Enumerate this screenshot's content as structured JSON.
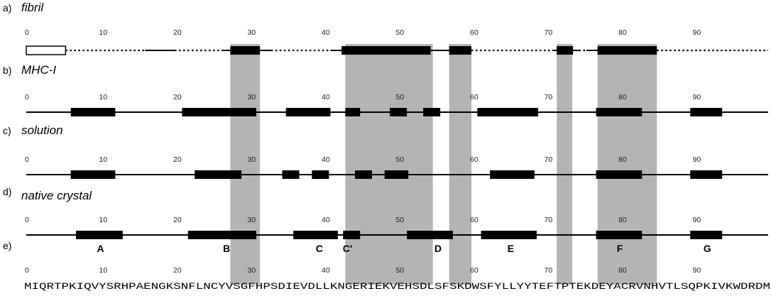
{
  "panels": [
    {
      "letter": "a)",
      "name": "fibril",
      "style": "fibril",
      "ticks": [
        "0",
        "10",
        "20",
        "30",
        "40",
        "50",
        "60",
        "70",
        "80",
        "90"
      ],
      "segments": [
        {
          "type": "box",
          "start": 0,
          "end": 5.3
        },
        {
          "type": "dotted",
          "start": 5.3,
          "end": 16
        },
        {
          "type": "solid",
          "start": 16,
          "end": 20
        },
        {
          "type": "dotted",
          "start": 20,
          "end": 26.5
        },
        {
          "type": "solid",
          "start": 26.5,
          "end": 27.5
        },
        {
          "type": "bar",
          "start": 27.5,
          "end": 31.5
        },
        {
          "type": "solid",
          "start": 31.5,
          "end": 33
        },
        {
          "type": "dotted",
          "start": 33,
          "end": 41
        },
        {
          "type": "solid",
          "start": 41,
          "end": 42.5
        },
        {
          "type": "bar",
          "start": 42.5,
          "end": 54.5
        },
        {
          "type": "solid",
          "start": 54.5,
          "end": 57
        },
        {
          "type": "bar",
          "start": 57,
          "end": 60
        },
        {
          "type": "dotted",
          "start": 60,
          "end": 71
        },
        {
          "type": "solid",
          "start": 71,
          "end": 71.5
        },
        {
          "type": "bar",
          "start": 71.5,
          "end": 73.7
        },
        {
          "type": "solid",
          "start": 73.7,
          "end": 74.5
        },
        {
          "type": "dotted",
          "start": 74.5,
          "end": 75.5
        },
        {
          "type": "solid",
          "start": 75.5,
          "end": 77
        },
        {
          "type": "bar",
          "start": 77,
          "end": 85
        },
        {
          "type": "dotted",
          "start": 85,
          "end": 99
        }
      ]
    },
    {
      "letter": "b)",
      "name": "MHC-I",
      "style": "full",
      "ticks": [
        "0",
        "10",
        "20",
        "30",
        "40",
        "50",
        "60",
        "70",
        "80",
        "90"
      ],
      "segments": [
        {
          "type": "bar",
          "start": 6,
          "end": 12
        },
        {
          "type": "bar",
          "start": 21,
          "end": 31
        },
        {
          "type": "bar",
          "start": 35,
          "end": 41
        },
        {
          "type": "bar",
          "start": 43,
          "end": 45
        },
        {
          "type": "bar",
          "start": 49,
          "end": 51.3
        },
        {
          "type": "bar",
          "start": 53.5,
          "end": 55.8
        },
        {
          "type": "bar",
          "start": 60.8,
          "end": 69
        },
        {
          "type": "bar",
          "start": 76.8,
          "end": 83
        },
        {
          "type": "bar",
          "start": 89.5,
          "end": 93.8
        }
      ]
    },
    {
      "letter": "c)",
      "name": "solution",
      "style": "full",
      "ticks": [
        "0",
        "10",
        "20",
        "30",
        "40",
        "50",
        "60",
        "70",
        "80",
        "90"
      ],
      "segments": [
        {
          "type": "bar",
          "start": 6,
          "end": 12
        },
        {
          "type": "bar",
          "start": 22.7,
          "end": 29
        },
        {
          "type": "bar",
          "start": 34.5,
          "end": 36.8
        },
        {
          "type": "bar",
          "start": 38.5,
          "end": 40.8
        },
        {
          "type": "bar",
          "start": 44.3,
          "end": 46.6
        },
        {
          "type": "bar",
          "start": 48.3,
          "end": 51.5
        },
        {
          "type": "bar",
          "start": 62.5,
          "end": 68.5
        },
        {
          "type": "bar",
          "start": 76.8,
          "end": 83
        },
        {
          "type": "bar",
          "start": 89.5,
          "end": 93.8
        }
      ]
    },
    {
      "letter": "d)",
      "name": "native crystal",
      "style": "full",
      "ticks": [
        "0",
        "10",
        "20",
        "30",
        "40",
        "50",
        "60",
        "70",
        "80",
        "90"
      ],
      "segments": [
        {
          "type": "bar",
          "start": 6.7,
          "end": 13
        },
        {
          "type": "bar",
          "start": 21.8,
          "end": 31
        },
        {
          "type": "bar",
          "start": 36,
          "end": 42
        },
        {
          "type": "bar",
          "start": 42.7,
          "end": 45
        },
        {
          "type": "bar",
          "start": 51.3,
          "end": 57.5
        },
        {
          "type": "bar",
          "start": 61.3,
          "end": 68.8
        },
        {
          "type": "bar",
          "start": 76.8,
          "end": 83
        },
        {
          "type": "bar",
          "start": 89.5,
          "end": 93.8
        }
      ]
    }
  ],
  "strand_labels": [
    {
      "text": "A",
      "pos": 10
    },
    {
      "text": "B",
      "pos": 27
    },
    {
      "text": "C",
      "pos": 39.5
    },
    {
      "text": "C'",
      "pos": 43.3
    },
    {
      "text": "D",
      "pos": 55.5
    },
    {
      "text": "E",
      "pos": 65.3
    },
    {
      "text": "F",
      "pos": 80
    },
    {
      "text": "G",
      "pos": 91.8
    }
  ],
  "shaded_regions": [
    [
      27.5,
      31.5
    ],
    [
      43,
      54.8
    ],
    [
      57,
      60
    ],
    [
      71.5,
      73.6
    ],
    [
      77,
      85
    ]
  ],
  "sequence_panel": {
    "letter": "e)",
    "ticks": [
      "0",
      "10",
      "20",
      "30",
      "40",
      "50",
      "60",
      "70",
      "80",
      "90"
    ],
    "sequence": "MIQRTPKIQVYSRHPAENGKSNFLNCYVSGFHPSDIEVDLLKNGERIEKVEHSDLSFSKDWSFYLLYYTEFTPTEKDEYACRVNHVTLSQPKIVKWDRDM"
  }
}
